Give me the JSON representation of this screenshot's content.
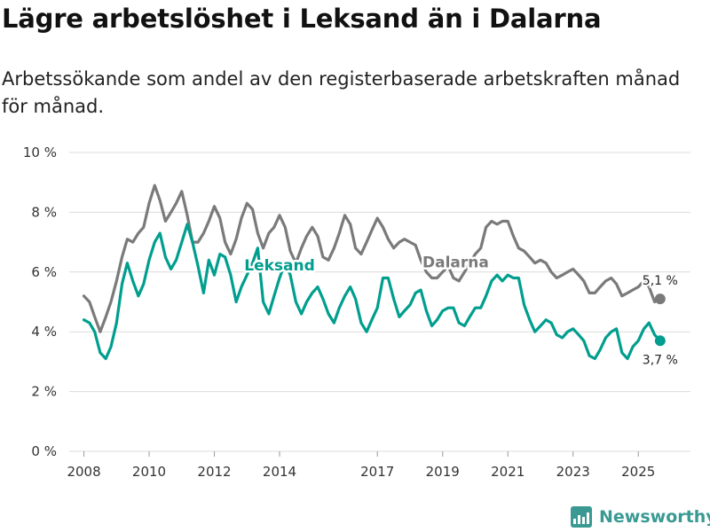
{
  "header": {
    "title": "Lägre arbetslöshet i Leksand än i Dalarna",
    "subtitle": "Arbetssökande som andel av den registerbaserade arbetskraften månad för månad."
  },
  "brand": {
    "name": "Newsworthy"
  },
  "colors": {
    "leksand": "#009e8e",
    "dalarna": "#7a7a7a",
    "brand": "#3a9a93"
  },
  "chart_data": {
    "type": "line",
    "title": "Lägre arbetslöshet i Leksand än i Dalarna",
    "xlabel": "",
    "ylabel": "",
    "y_ticks": [
      0,
      2,
      4,
      6,
      8,
      10
    ],
    "y_tick_labels": [
      "0 %",
      "2 %",
      "4 %",
      "6 %",
      "8 %",
      "10 %"
    ],
    "x_ticks": [
      2008,
      2010,
      2012,
      2014,
      2017,
      2019,
      2021,
      2023,
      2025
    ],
    "x_tick_labels": [
      "2008",
      "2010",
      "2012",
      "2014",
      "2017",
      "2019",
      "2021",
      "2023",
      "2025"
    ],
    "xlim": [
      2007.55,
      2026.6
    ],
    "ylim": [
      0,
      10
    ],
    "grid": true,
    "series": [
      {
        "name": "Dalarna",
        "x": [
          2008.0,
          2008.17,
          2008.33,
          2008.5,
          2008.67,
          2008.83,
          2009.0,
          2009.17,
          2009.33,
          2009.5,
          2009.67,
          2009.83,
          2010.0,
          2010.17,
          2010.33,
          2010.5,
          2010.67,
          2010.83,
          2011.0,
          2011.17,
          2011.33,
          2011.5,
          2011.67,
          2011.83,
          2012.0,
          2012.17,
          2012.33,
          2012.5,
          2012.67,
          2012.83,
          2013.0,
          2013.17,
          2013.33,
          2013.5,
          2013.67,
          2013.83,
          2014.0,
          2014.17,
          2014.33,
          2014.5,
          2014.67,
          2014.83,
          2015.0,
          2015.17,
          2015.33,
          2015.5,
          2015.67,
          2015.83,
          2016.0,
          2016.17,
          2016.33,
          2016.5,
          2016.67,
          2016.83,
          2017.0,
          2017.17,
          2017.33,
          2017.5,
          2017.67,
          2017.83,
          2018.0,
          2018.17,
          2018.33,
          2018.5,
          2018.67,
          2018.83,
          2019.0,
          2019.17,
          2019.33,
          2019.5,
          2019.67,
          2019.83,
          2020.0,
          2020.17,
          2020.33,
          2020.5,
          2020.67,
          2020.83,
          2021.0,
          2021.17,
          2021.33,
          2021.5,
          2021.67,
          2021.83,
          2022.0,
          2022.17,
          2022.33,
          2022.5,
          2022.67,
          2022.83,
          2023.0,
          2023.17,
          2023.33,
          2023.5,
          2023.67,
          2023.83,
          2024.0,
          2024.17,
          2024.33,
          2024.5,
          2024.67,
          2024.83,
          2025.0,
          2025.17,
          2025.33,
          2025.5,
          2025.67
        ],
        "values": [
          5.2,
          5.0,
          4.5,
          4.0,
          4.5,
          5.0,
          5.7,
          6.5,
          7.1,
          7.0,
          7.3,
          7.5,
          8.3,
          8.9,
          8.4,
          7.7,
          8.0,
          8.3,
          8.7,
          7.9,
          7.0,
          7.0,
          7.3,
          7.7,
          8.2,
          7.8,
          7.0,
          6.6,
          7.1,
          7.8,
          8.3,
          8.1,
          7.3,
          6.8,
          7.3,
          7.5,
          7.9,
          7.5,
          6.7,
          6.3,
          6.8,
          7.2,
          7.5,
          7.2,
          6.5,
          6.4,
          6.8,
          7.3,
          7.9,
          7.6,
          6.8,
          6.6,
          7.0,
          7.4,
          7.8,
          7.5,
          7.1,
          6.8,
          7.0,
          7.1,
          7.0,
          6.9,
          6.4,
          6.0,
          5.8,
          5.8,
          6.0,
          6.2,
          5.8,
          5.7,
          6.0,
          6.3,
          6.6,
          6.8,
          7.5,
          7.7,
          7.6,
          7.7,
          7.7,
          7.2,
          6.8,
          6.7,
          6.5,
          6.3,
          6.4,
          6.3,
          6.0,
          5.8,
          5.9,
          6.0,
          6.1,
          5.9,
          5.7,
          5.3,
          5.3,
          5.5,
          5.7,
          5.8,
          5.6,
          5.2,
          5.3,
          5.4,
          5.5,
          5.7,
          5.5,
          5.0,
          5.1
        ]
      },
      {
        "name": "Leksand",
        "x": [
          2008.0,
          2008.17,
          2008.33,
          2008.5,
          2008.67,
          2008.83,
          2009.0,
          2009.17,
          2009.33,
          2009.5,
          2009.67,
          2009.83,
          2010.0,
          2010.17,
          2010.33,
          2010.5,
          2010.67,
          2010.83,
          2011.0,
          2011.17,
          2011.33,
          2011.5,
          2011.67,
          2011.83,
          2012.0,
          2012.17,
          2012.33,
          2012.5,
          2012.67,
          2012.83,
          2013.0,
          2013.17,
          2013.33,
          2013.5,
          2013.67,
          2013.83,
          2014.0,
          2014.17,
          2014.33,
          2014.5,
          2014.67,
          2014.83,
          2015.0,
          2015.17,
          2015.33,
          2015.5,
          2015.67,
          2015.83,
          2016.0,
          2016.17,
          2016.33,
          2016.5,
          2016.67,
          2016.83,
          2017.0,
          2017.17,
          2017.33,
          2017.5,
          2017.67,
          2017.83,
          2018.0,
          2018.17,
          2018.33,
          2018.5,
          2018.67,
          2018.83,
          2019.0,
          2019.17,
          2019.33,
          2019.5,
          2019.67,
          2019.83,
          2020.0,
          2020.17,
          2020.33,
          2020.5,
          2020.67,
          2020.83,
          2021.0,
          2021.17,
          2021.33,
          2021.5,
          2021.67,
          2021.83,
          2022.0,
          2022.17,
          2022.33,
          2022.5,
          2022.67,
          2022.83,
          2023.0,
          2023.17,
          2023.33,
          2023.5,
          2023.67,
          2023.83,
          2024.0,
          2024.17,
          2024.33,
          2024.5,
          2024.67,
          2024.83,
          2025.0,
          2025.17,
          2025.33,
          2025.5,
          2025.67
        ],
        "values": [
          4.4,
          4.3,
          4.0,
          3.3,
          3.1,
          3.5,
          4.3,
          5.6,
          6.3,
          5.7,
          5.2,
          5.6,
          6.4,
          7.0,
          7.3,
          6.5,
          6.1,
          6.4,
          7.0,
          7.6,
          7.0,
          6.2,
          5.3,
          6.4,
          5.9,
          6.6,
          6.5,
          5.9,
          5.0,
          5.5,
          5.9,
          6.3,
          6.8,
          5.0,
          4.6,
          5.2,
          5.8,
          6.3,
          5.9,
          5.0,
          4.6,
          5.0,
          5.3,
          5.5,
          5.1,
          4.6,
          4.3,
          4.8,
          5.2,
          5.5,
          5.1,
          4.3,
          4.0,
          4.4,
          4.8,
          5.8,
          5.8,
          5.1,
          4.5,
          4.7,
          4.9,
          5.3,
          5.4,
          4.7,
          4.2,
          4.4,
          4.7,
          4.8,
          4.8,
          4.3,
          4.2,
          4.5,
          4.8,
          4.8,
          5.2,
          5.7,
          5.9,
          5.7,
          5.9,
          5.8,
          5.8,
          4.9,
          4.4,
          4.0,
          4.2,
          4.4,
          4.3,
          3.9,
          3.8,
          4.0,
          4.1,
          3.9,
          3.7,
          3.2,
          3.1,
          3.4,
          3.8,
          4.0,
          4.1,
          3.3,
          3.1,
          3.5,
          3.7,
          4.1,
          4.3,
          3.9,
          3.7
        ]
      }
    ],
    "series_labels": [
      "Leksand",
      "Dalarna"
    ],
    "end_points": [
      {
        "series": "Dalarna",
        "x": 2025.67,
        "value": 5.1,
        "label": "5,1 %"
      },
      {
        "series": "Leksand",
        "x": 2025.67,
        "value": 3.7,
        "label": "3,7 %"
      }
    ],
    "series_label_positions": [
      {
        "series": "Leksand",
        "x": 2014.0,
        "value": 6.05
      },
      {
        "series": "Dalarna",
        "x": 2019.4,
        "value": 6.15
      }
    ]
  }
}
